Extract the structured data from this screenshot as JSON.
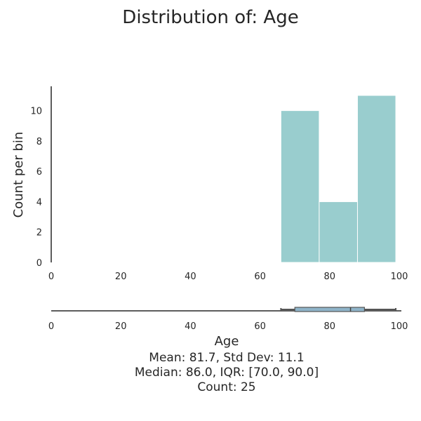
{
  "chart_data": {
    "type": "bar",
    "title": "Distribution of: Age",
    "xlabel": "Age",
    "ylabel": "Count per bin",
    "xlim": [
      0,
      100
    ],
    "ylim": [
      0,
      11.6
    ],
    "x_ticks": [
      "0",
      "20",
      "40",
      "60",
      "80",
      "100"
    ],
    "y_ticks": [
      "0",
      "2",
      "4",
      "6",
      "8",
      "10"
    ],
    "bins": [
      {
        "start": 66,
        "end": 77,
        "count": 10
      },
      {
        "start": 77,
        "end": 88,
        "count": 4
      },
      {
        "start": 88,
        "end": 99,
        "count": 11
      }
    ],
    "bar_color": "#99cdce",
    "boxplot": {
      "whisker_low": 66,
      "q1": 70,
      "median": 86,
      "q3": 90,
      "whisker_high": 99,
      "box_color": "#8fb4c9"
    },
    "stats": [
      "Mean: 81.7, Std Dev: 11.1",
      "Median: 86.0, IQR: [70.0, 90.0]",
      "Count: 25"
    ],
    "grid": false
  }
}
